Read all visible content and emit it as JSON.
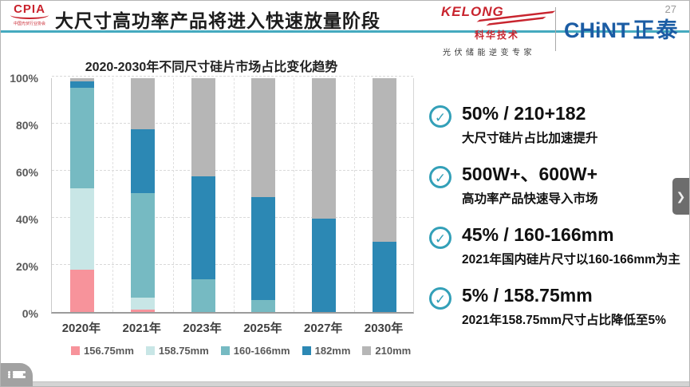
{
  "header": {
    "cpia_logo": {
      "text": "CPIA",
      "subtext": "中国光伏行业协会"
    },
    "title": "大尺寸高功率产品将进入快速放量阶段",
    "kelong_logo": {
      "name": "KELONG",
      "cn": "科华技术",
      "tagline": "光伏储能逆变专家"
    },
    "chint_logo": {
      "en": "CHiNT",
      "cn": "正泰"
    },
    "page_number": "27"
  },
  "chart_data": {
    "type": "bar",
    "stacked": true,
    "title": "2020-2030年不同尺寸硅片市场占比变化趋势",
    "categories": [
      "2020年",
      "2021年",
      "2023年",
      "2025年",
      "2027年",
      "2030年"
    ],
    "series": [
      {
        "name": "156.75mm",
        "color": "#f7939b",
        "values": [
          18,
          1,
          0,
          0,
          0,
          0
        ]
      },
      {
        "name": "158.75mm",
        "color": "#c8e6e6",
        "values": [
          35,
          5,
          0,
          0,
          0,
          0
        ]
      },
      {
        "name": "160-166mm",
        "color": "#76bac2",
        "values": [
          43,
          45,
          14,
          5,
          0,
          0
        ]
      },
      {
        "name": "182mm",
        "color": "#2c88b4",
        "values": [
          2.5,
          27,
          44,
          44,
          40,
          30
        ]
      },
      {
        "name": "210mm",
        "color": "#b6b6b6",
        "values": [
          1.5,
          22,
          42,
          51,
          60,
          70
        ]
      }
    ],
    "y_ticks": [
      "0%",
      "20%",
      "40%",
      "60%",
      "80%",
      "100%"
    ],
    "ylim": [
      0,
      100
    ],
    "grid": "dashed",
    "legend_position": "bottom"
  },
  "bullets": [
    {
      "heading": "50% / 210+182",
      "sub": "大尺寸硅片占比加速提升"
    },
    {
      "heading": "500W+、600W+",
      "sub": "高功率产品快速导入市场"
    },
    {
      "heading": "45% / 160-166mm",
      "sub": "2021年国内硅片尺寸以160-166mm为主"
    },
    {
      "heading": "5% / 158.75mm",
      "sub": "2021年158.75mm尺寸占比降低至5%"
    }
  ],
  "nav": {
    "next_arrow": "❯",
    "check_glyph": "✓"
  },
  "colors": {
    "header_line": "#45aabf",
    "check_teal": "#33a0b8",
    "chint_blue": "#1b5ca4",
    "kelong_red": "#c8242e"
  }
}
